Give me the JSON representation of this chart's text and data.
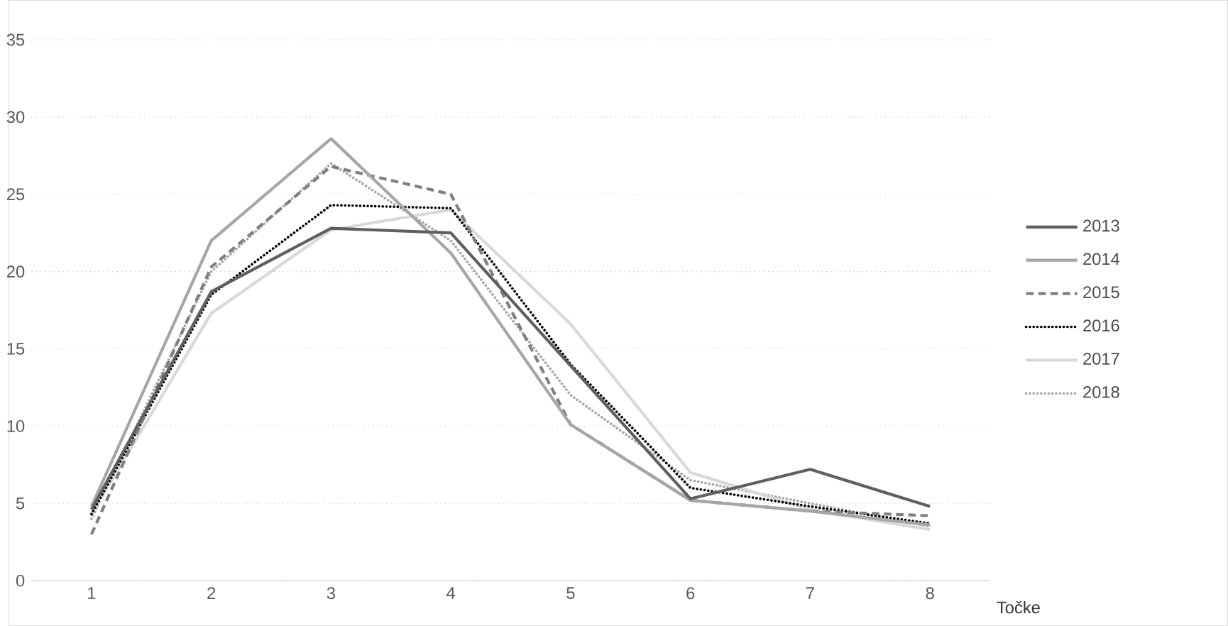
{
  "chart_data": {
    "type": "line",
    "xlabel": "Točke",
    "categories": [
      "1",
      "2",
      "3",
      "4",
      "5",
      "6",
      "7",
      "8"
    ],
    "ylim": [
      0,
      35
    ],
    "yticks": [
      0,
      5,
      10,
      15,
      20,
      25,
      30,
      35
    ],
    "grid": "y",
    "legend": "right",
    "marker": "none",
    "series": [
      {
        "name": "2013",
        "color": "#5f5f5f",
        "line_style": "solid",
        "values": [
          4.6,
          18.7,
          22.8,
          22.5,
          13.9,
          5.3,
          7.2,
          4.8
        ]
      },
      {
        "name": "2014",
        "color": "#a6a6a6",
        "line_style": "solid",
        "values": [
          4.8,
          22.0,
          28.6,
          21.2,
          10.1,
          5.2,
          4.5,
          3.6
        ]
      },
      {
        "name": "2015",
        "color": "#808080",
        "line_style": "dashed",
        "values": [
          3.0,
          20.3,
          26.8,
          25.0,
          10.1,
          5.2,
          4.5,
          4.2
        ]
      },
      {
        "name": "2016",
        "color": "#000000",
        "line_style": "dotted",
        "values": [
          4.3,
          18.5,
          24.3,
          24.1,
          14.0,
          6.0,
          4.8,
          3.7
        ]
      },
      {
        "name": "2017",
        "color": "#d9d9d9",
        "line_style": "solid",
        "values": [
          4.3,
          17.3,
          22.7,
          24.0,
          16.6,
          7.0,
          4.6,
          3.3
        ]
      },
      {
        "name": "2018",
        "color": "#a6a6a6",
        "line_style": "dotted",
        "values": [
          4.0,
          20.0,
          27.0,
          22.0,
          12.0,
          6.5,
          5.0,
          3.5
        ]
      }
    ]
  }
}
